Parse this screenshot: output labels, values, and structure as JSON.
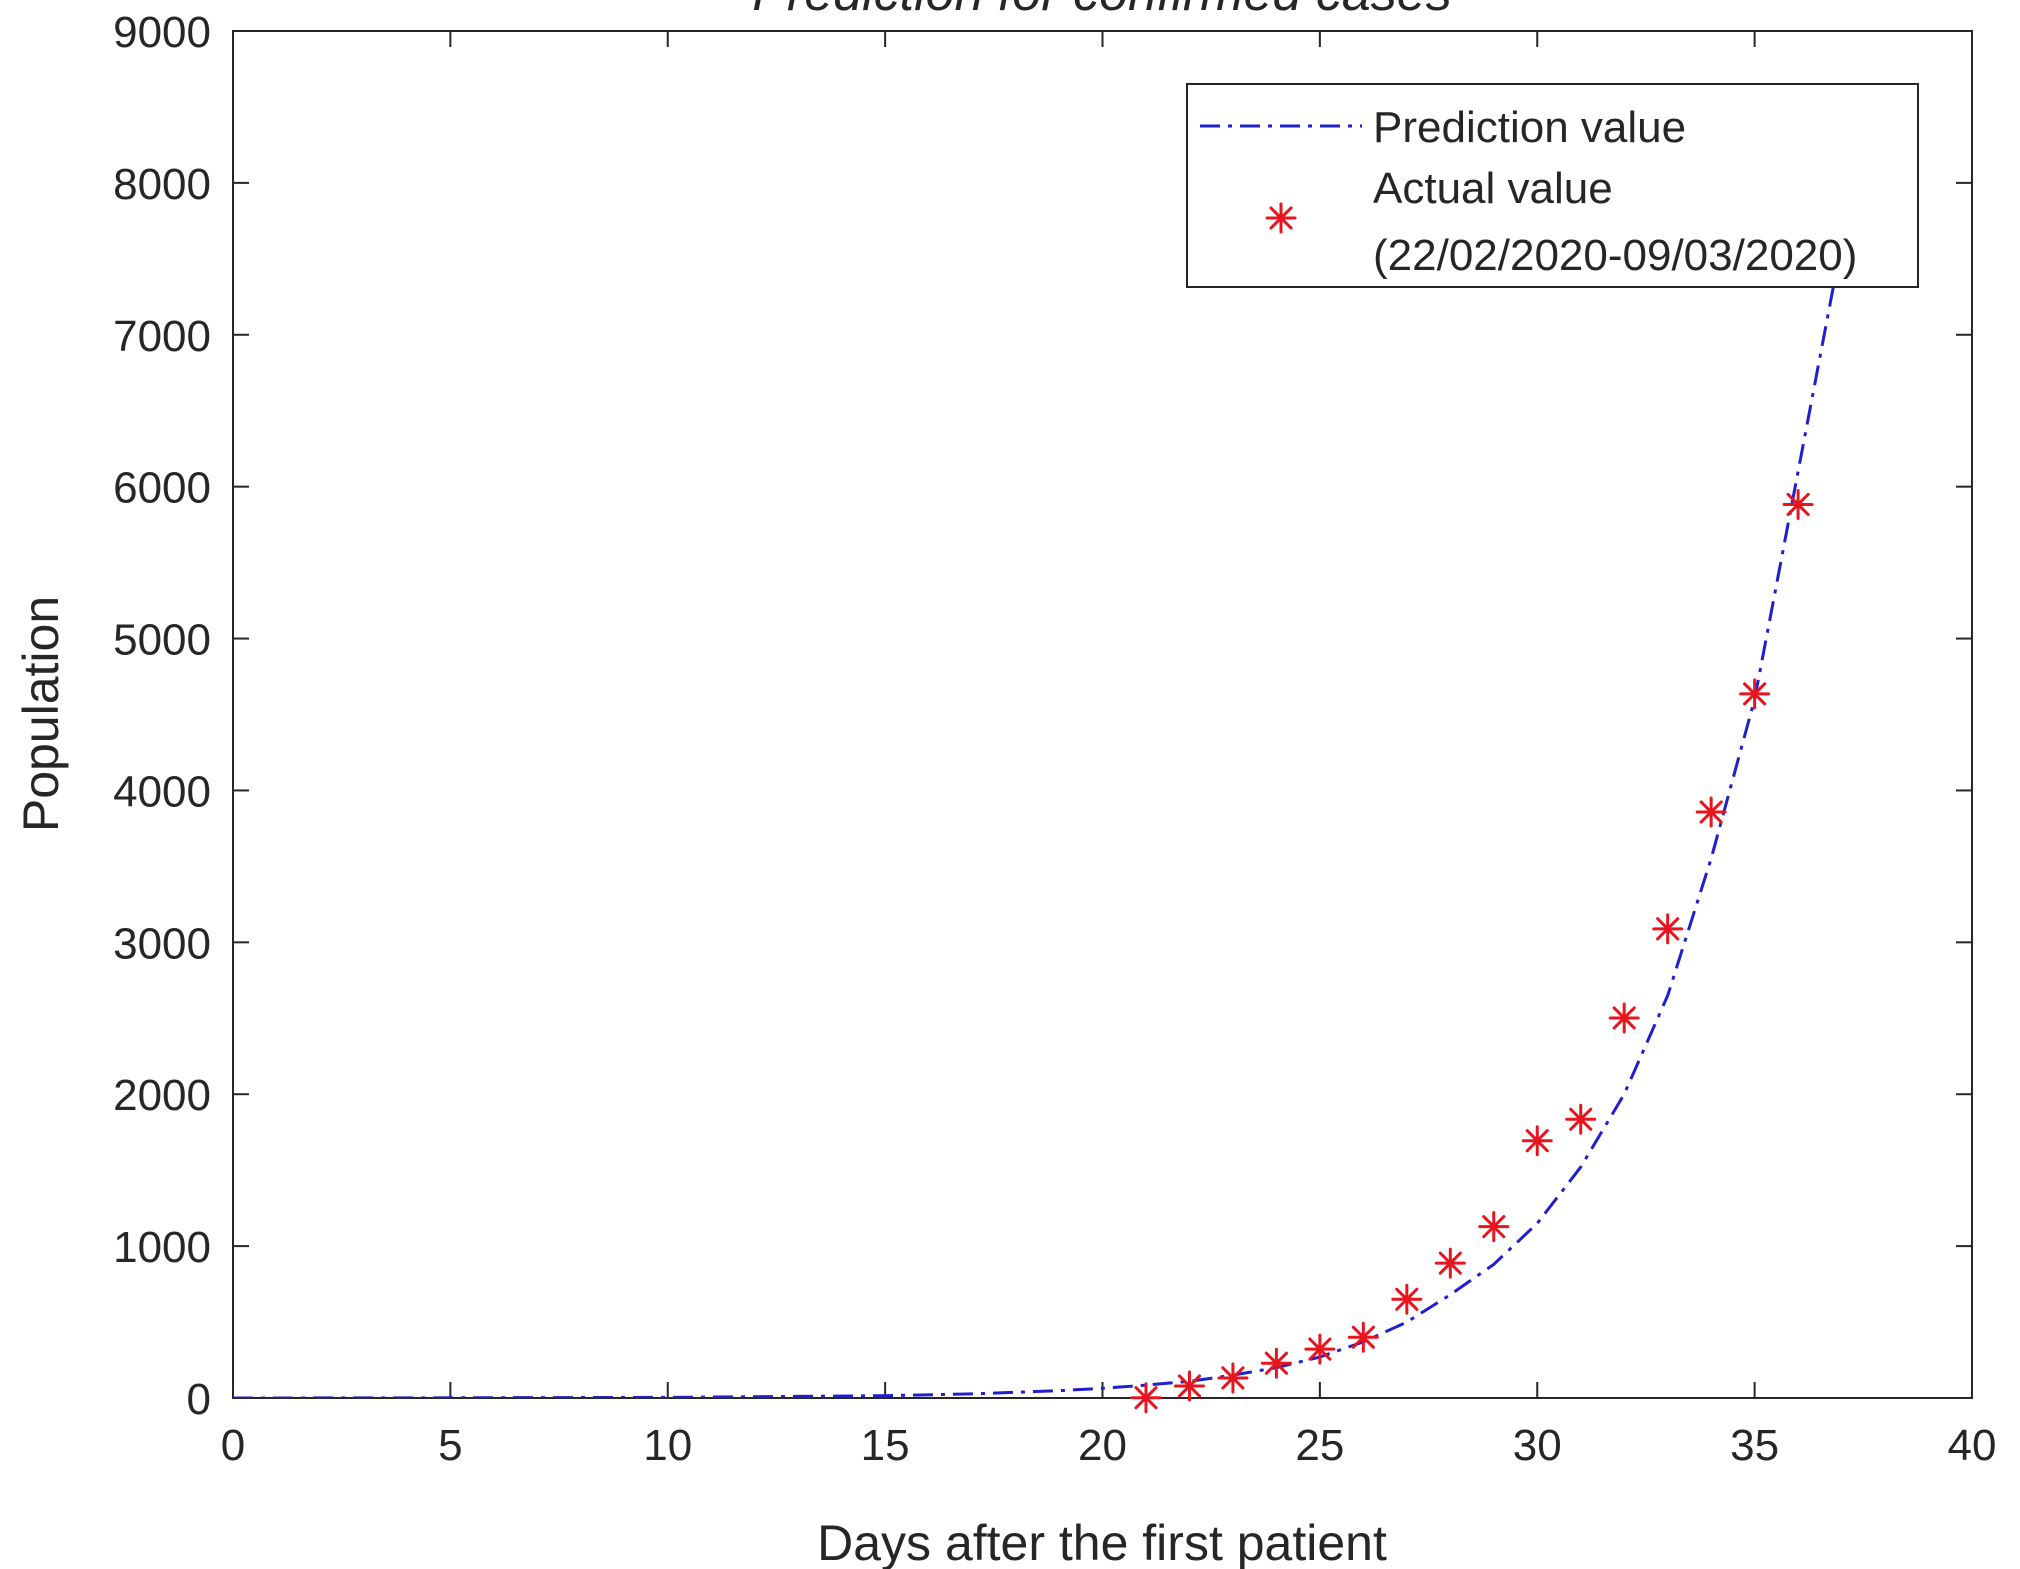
{
  "chart_data": {
    "type": "line",
    "title": "Prediction for confirmed cases",
    "xlabel": "Days after the first patient",
    "ylabel": "Population",
    "xlim": [
      0,
      40
    ],
    "ylim": [
      0,
      9000
    ],
    "xticks": [
      0,
      5,
      10,
      15,
      20,
      25,
      30,
      35,
      40
    ],
    "yticks": [
      0,
      1000,
      2000,
      3000,
      4000,
      5000,
      6000,
      7000,
      8000,
      9000
    ],
    "grid": false,
    "legend_position": "top-right",
    "series": [
      {
        "name": "Prediction value",
        "style": "dash-dot",
        "color": "#1f1fd0",
        "x": [
          0,
          5,
          10,
          15,
          17,
          19,
          20,
          21,
          22,
          23,
          24,
          25,
          26,
          27,
          28,
          29,
          30,
          31,
          32,
          33,
          34,
          35,
          36,
          37
        ],
        "y": [
          0,
          1,
          4,
          15,
          27,
          48,
          64,
          85,
          110,
          150,
          200,
          270,
          370,
          500,
          680,
          880,
          1150,
          1520,
          2000,
          2650,
          3550,
          4600,
          6100,
          7600
        ]
      },
      {
        "name": "Actual value",
        "name_line2": "(22/02/2020-09/03/2020)",
        "style": "asterisk",
        "color": "#e8141e",
        "x": [
          21,
          22,
          23,
          24,
          25,
          26,
          27,
          28,
          29,
          30,
          31,
          32,
          33,
          34,
          35,
          36
        ],
        "y": [
          2,
          79,
          132,
          229,
          322,
          400,
          650,
          888,
          1128,
          1694,
          1835,
          2502,
          3089,
          3858,
          4636,
          5883
        ]
      }
    ]
  }
}
